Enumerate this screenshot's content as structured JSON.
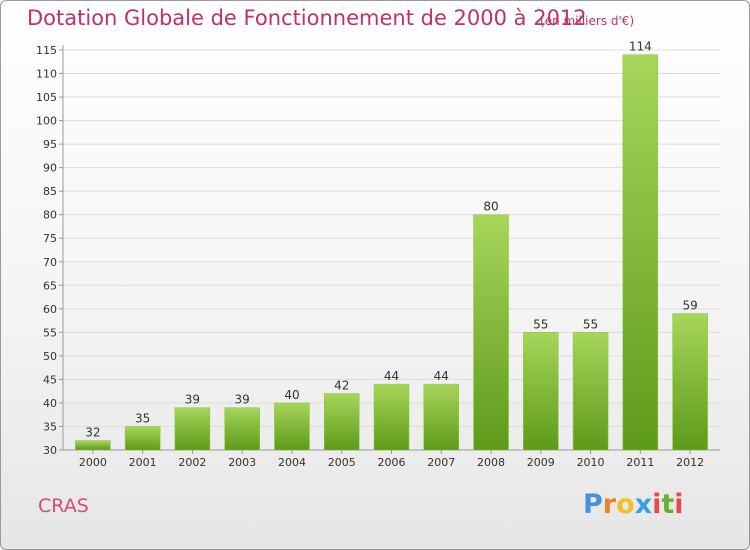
{
  "page": {
    "title": "Dotation Globale de Fonctionnement de 2000 à 2012",
    "unit": "(en milliers d'€)",
    "commune": "CRAS",
    "logo": {
      "letters": [
        "P",
        "r",
        "o",
        "x",
        "i",
        "t",
        "i"
      ],
      "colors": [
        "#4a90d9",
        "#e8832a",
        "#f0c020",
        "#3aa0e0",
        "#e84a4a",
        "#66b032",
        "#e84a4a"
      ]
    }
  },
  "chart_data": {
    "type": "bar",
    "categories": [
      "2000",
      "2001",
      "2002",
      "2003",
      "2004",
      "2005",
      "2006",
      "2007",
      "2008",
      "2009",
      "2010",
      "2011",
      "2012"
    ],
    "values": [
      32,
      35,
      39,
      39,
      40,
      42,
      44,
      44,
      80,
      55,
      55,
      114,
      59
    ],
    "data_labels": [
      "32",
      "35",
      "39",
      "39",
      "40",
      "42",
      "44",
      "44",
      "80",
      "55",
      "55",
      "114",
      "59"
    ],
    "y_ticks": [
      "30",
      "35",
      "40",
      "45",
      "50",
      "55",
      "60",
      "65",
      "70",
      "75",
      "80",
      "85",
      "90",
      "95",
      "100",
      "105",
      "110",
      "115"
    ],
    "ylim": [
      30,
      115
    ],
    "grid": true,
    "colors": {
      "bar_light": "#a6d65a",
      "bar_dark": "#5e9a1a",
      "grid": "#dcdcdc",
      "axis": "#9a9a9a"
    }
  }
}
